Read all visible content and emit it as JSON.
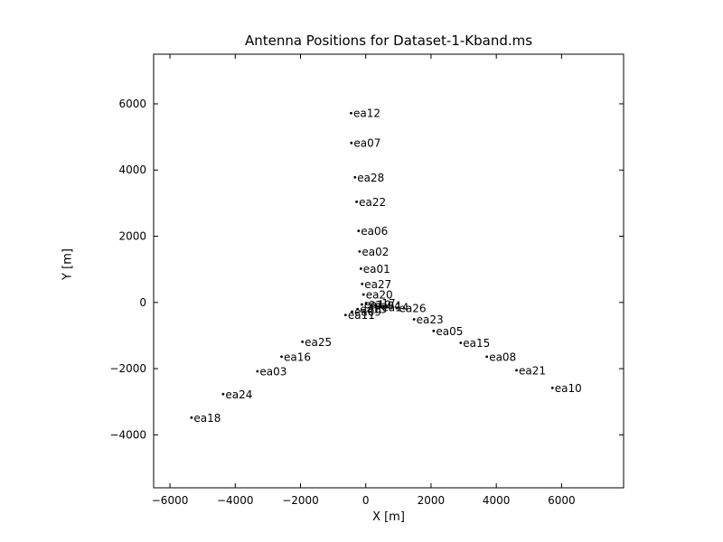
{
  "chart_data": {
    "type": "scatter",
    "title": "Antenna Positions for Dataset-1-Kband.ms",
    "xlabel": "X [m]",
    "ylabel": "Y [m]",
    "xlim": [
      -6500,
      7900
    ],
    "ylim": [
      -5600,
      7500
    ],
    "xticks": [
      -6000,
      -4000,
      -2000,
      0,
      2000,
      4000,
      6000
    ],
    "yticks": [
      -4000,
      -2000,
      0,
      2000,
      4000,
      6000
    ],
    "grid": false,
    "legend": "none",
    "marker_color": "#000000",
    "label_color": "#000000",
    "points": [
      {
        "label": "ea12",
        "x": -450,
        "y": 5720
      },
      {
        "label": "ea07",
        "x": -440,
        "y": 4820
      },
      {
        "label": "ea28",
        "x": -330,
        "y": 3780
      },
      {
        "label": "ea22",
        "x": -280,
        "y": 3040
      },
      {
        "label": "ea06",
        "x": -220,
        "y": 2160
      },
      {
        "label": "ea02",
        "x": -190,
        "y": 1540
      },
      {
        "label": "ea01",
        "x": -150,
        "y": 1020
      },
      {
        "label": "ea27",
        "x": -110,
        "y": 560
      },
      {
        "label": "ea20",
        "x": -70,
        "y": 240
      },
      {
        "label": "ea19",
        "x": -120,
        "y": -60
      },
      {
        "label": "ea17",
        "x": 10,
        "y": -20
      },
      {
        "label": "ea04",
        "x": 180,
        "y": -90
      },
      {
        "label": "ea14",
        "x": 420,
        "y": -140
      },
      {
        "label": "ea13",
        "x": -250,
        "y": -200
      },
      {
        "label": "ea09",
        "x": -420,
        "y": -280
      },
      {
        "label": "ea11",
        "x": -620,
        "y": -380
      },
      {
        "label": "ea26",
        "x": 950,
        "y": -170
      },
      {
        "label": "ea23",
        "x": 1480,
        "y": -510
      },
      {
        "label": "ea05",
        "x": 2080,
        "y": -860
      },
      {
        "label": "ea15",
        "x": 2910,
        "y": -1220
      },
      {
        "label": "ea08",
        "x": 3710,
        "y": -1640
      },
      {
        "label": "ea21",
        "x": 4620,
        "y": -2050
      },
      {
        "label": "ea10",
        "x": 5720,
        "y": -2580
      },
      {
        "label": "ea25",
        "x": -1940,
        "y": -1190
      },
      {
        "label": "ea16",
        "x": -2580,
        "y": -1640
      },
      {
        "label": "ea03",
        "x": -3320,
        "y": -2080
      },
      {
        "label": "ea24",
        "x": -4370,
        "y": -2770
      },
      {
        "label": "ea18",
        "x": -5340,
        "y": -3480
      }
    ]
  }
}
